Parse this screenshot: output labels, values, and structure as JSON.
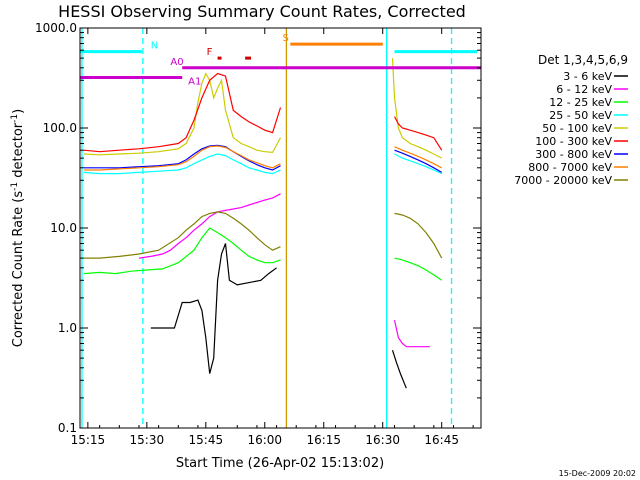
{
  "chart_data": {
    "type": "line",
    "title": "HESSI Observing Summary Count Rates, Corrected",
    "xlabel": "Start Time (26-Apr-02 15:13:02)",
    "ylabel_main": "Corrected Count Rate (s",
    "ylabel_sup1": "-1",
    "ylabel_mid": " detector",
    "ylabel_sup2": "-1",
    "ylabel_end": ")",
    "timestamp": "15-Dec-2009 20:02",
    "y_scale": "log",
    "ylim": [
      0.1,
      1000.0
    ],
    "xlim_minutes": [
      15.0,
      117.0
    ],
    "x_ticks": [
      {
        "label": "15:15",
        "m": 17.0
      },
      {
        "label": "15:30",
        "m": 32.0
      },
      {
        "label": "15:45",
        "m": 47.0
      },
      {
        "label": "16:00",
        "m": 62.0
      },
      {
        "label": "16:15",
        "m": 77.0
      },
      {
        "label": "16:30",
        "m": 92.0
      },
      {
        "label": "16:45",
        "m": 107.0
      }
    ],
    "y_ticks": [
      {
        "label": "0.1",
        "v": 0.1
      },
      {
        "label": "1.0",
        "v": 1.0
      },
      {
        "label": "10.0",
        "v": 10.0
      },
      {
        "label": "100.0",
        "v": 100.0
      },
      {
        "label": "1000.0",
        "v": 1000.0
      }
    ],
    "legend_title": "Det 1,3,4,5,6,9",
    "series": [
      {
        "name": "3 - 6 keV",
        "color": "#000000",
        "x": [
          33,
          35,
          37,
          39,
          41,
          43,
          45,
          46,
          47,
          48,
          49,
          50,
          51,
          52,
          53,
          55,
          57,
          59,
          61,
          63,
          65
        ],
        "y": [
          1.0,
          1.0,
          1.0,
          1.0,
          1.8,
          1.8,
          1.9,
          1.5,
          0.8,
          0.35,
          0.5,
          3.0,
          5.5,
          7.0,
          3.0,
          2.7,
          2.8,
          2.9,
          3.0,
          3.5,
          4.0
        ],
        "x2": [
          94.5,
          95.5,
          96.5,
          97.5,
          98.0
        ],
        "y2": [
          0.6,
          0.45,
          0.35,
          0.28,
          0.25
        ]
      },
      {
        "name": "6 - 12 keV",
        "color": "#ff00ff",
        "x": [
          30,
          33,
          36,
          38,
          40,
          42,
          44,
          46,
          48,
          50,
          52,
          54,
          56,
          58,
          60,
          62,
          64,
          66
        ],
        "y": [
          5.0,
          5.2,
          5.5,
          6.0,
          7.0,
          8.0,
          9.5,
          11.0,
          13.0,
          14.5,
          15.0,
          15.5,
          16.0,
          17.0,
          18.0,
          19.0,
          20.0,
          22.0
        ],
        "x2": [
          95,
          96,
          97,
          98,
          100,
          102,
          104
        ],
        "y2": [
          1.2,
          0.8,
          0.7,
          0.65,
          0.65,
          0.65,
          0.65
        ]
      },
      {
        "name": "12 - 25 keV",
        "color": "#00ff00",
        "x": [
          16,
          20,
          24,
          28,
          32,
          36,
          40,
          44,
          46,
          48,
          50,
          52,
          54,
          56,
          58,
          60,
          62,
          64,
          66
        ],
        "y": [
          3.5,
          3.6,
          3.5,
          3.7,
          3.8,
          3.9,
          4.5,
          6.0,
          8.0,
          10.0,
          9.0,
          8.0,
          7.0,
          6.0,
          5.2,
          4.8,
          4.5,
          4.5,
          4.8
        ],
        "x2": [
          95,
          97,
          99,
          101,
          103,
          105,
          107
        ],
        "y2": [
          5.0,
          4.8,
          4.5,
          4.2,
          3.8,
          3.4,
          3.0
        ]
      },
      {
        "name": "25 - 50 keV",
        "color": "#00ffff",
        "x": [
          16,
          20,
          25,
          30,
          35,
          40,
          42,
          44,
          46,
          48,
          50,
          52,
          54,
          56,
          58,
          60,
          62,
          64,
          66
        ],
        "y": [
          36,
          35,
          35,
          36,
          37,
          38,
          40,
          44,
          48,
          52,
          55,
          53,
          48,
          44,
          40,
          38,
          36,
          35,
          38
        ],
        "x2": [
          95,
          97,
          99,
          101,
          103,
          105,
          107
        ],
        "y2": [
          55,
          50,
          47,
          44,
          41,
          38,
          35
        ]
      },
      {
        "name": "50 - 100 keV",
        "color": "#cccc00",
        "x": [
          16,
          20,
          25,
          30,
          35,
          40,
          42,
          44,
          45,
          46,
          47,
          48,
          49,
          50,
          51,
          52,
          54,
          56,
          58,
          60,
          62,
          64,
          66
        ],
        "y": [
          55,
          54,
          55,
          56,
          58,
          62,
          70,
          100,
          180,
          280,
          350,
          300,
          200,
          250,
          300,
          150,
          80,
          70,
          65,
          60,
          58,
          57,
          80
        ],
        "x2": [
          94.5,
          95,
          96,
          97,
          99,
          101,
          103,
          105,
          107
        ],
        "y2": [
          500,
          200,
          100,
          80,
          70,
          65,
          60,
          55,
          50
        ]
      },
      {
        "name": "100 - 300 keV",
        "color": "#ff0000",
        "x": [
          16,
          20,
          25,
          30,
          35,
          40,
          42,
          44,
          46,
          48,
          50,
          52,
          54,
          56,
          58,
          60,
          62,
          64,
          66
        ],
        "y": [
          60,
          58,
          60,
          62,
          65,
          70,
          80,
          120,
          200,
          300,
          350,
          330,
          150,
          130,
          115,
          105,
          95,
          90,
          160
        ],
        "x2": [
          95,
          96,
          97,
          99,
          101,
          103,
          105,
          107
        ],
        "y2": [
          130,
          110,
          100,
          95,
          90,
          85,
          80,
          60
        ]
      },
      {
        "name": "300 - 800 keV",
        "color": "#0000ff",
        "x": [
          16,
          20,
          25,
          30,
          35,
          40,
          42,
          44,
          46,
          48,
          50,
          52,
          54,
          56,
          58,
          60,
          62,
          64,
          66
        ],
        "y": [
          40,
          40,
          40,
          41,
          42,
          44,
          48,
          55,
          62,
          66,
          67,
          65,
          58,
          52,
          47,
          43,
          40,
          38,
          42
        ],
        "x2": [
          95,
          97,
          99,
          101,
          103,
          105,
          107
        ],
        "y2": [
          60,
          56,
          52,
          48,
          44,
          40,
          36
        ]
      },
      {
        "name": "800 - 7000 keV",
        "color": "#ff8000",
        "x": [
          16,
          20,
          25,
          30,
          35,
          40,
          42,
          44,
          46,
          48,
          50,
          52,
          54,
          56,
          58,
          60,
          62,
          64,
          66
        ],
        "y": [
          38,
          38,
          39,
          40,
          41,
          43,
          46,
          52,
          60,
          65,
          66,
          64,
          58,
          53,
          48,
          45,
          42,
          40,
          44
        ],
        "x2": [
          95,
          97,
          99,
          101,
          103,
          105,
          107
        ],
        "y2": [
          65,
          60,
          56,
          52,
          48,
          44,
          40
        ]
      },
      {
        "name": "7000 - 20000 keV",
        "color": "#808000",
        "x": [
          16,
          20,
          25,
          30,
          35,
          40,
          42,
          44,
          46,
          48,
          50,
          52,
          54,
          56,
          58,
          60,
          62,
          64,
          66
        ],
        "y": [
          5.0,
          5.0,
          5.2,
          5.5,
          6.0,
          8.0,
          9.5,
          11.0,
          13.0,
          14.0,
          14.5,
          14.0,
          12.5,
          11.0,
          9.5,
          8.0,
          6.8,
          6.0,
          6.5
        ],
        "x2": [
          95,
          97,
          99,
          101,
          103,
          105,
          107
        ],
        "y2": [
          14,
          13.5,
          12.5,
          11,
          9,
          7,
          5
        ]
      }
    ],
    "annotations": [
      {
        "label": "N",
        "color": "#00ffff",
        "type": "bar",
        "x0": 15.0,
        "x1": 30.8,
        "y": 580.0,
        "label_x": 33.0
      },
      {
        "label": "N",
        "color": "#00ffff",
        "type": "bar",
        "x0": 95.0,
        "x1": 116.0,
        "y": 580.0
      },
      {
        "label": "A0",
        "color": "#cc00cc",
        "type": "bar",
        "x0": 41.0,
        "x1": 117.0,
        "y": 400.0,
        "label_x": 38.0
      },
      {
        "label": "A1",
        "color": "#cc00cc",
        "type": "bar",
        "x0": 15.0,
        "x1": 41.0,
        "y": 320.0,
        "label_x": 42.5
      },
      {
        "label": "F",
        "color": "#cc0000",
        "type": "bar",
        "x0": 50.0,
        "x1": 51.0,
        "y": 500.0,
        "label_x": 47.2
      },
      {
        "label": "",
        "color": "#cc0000",
        "type": "bar",
        "x0": 57.0,
        "x1": 58.5,
        "y": 500.0
      },
      {
        "label": "S",
        "color": "#ff8000",
        "type": "bar",
        "x0": 68.5,
        "x1": 92.0,
        "y": 690.0,
        "label_x": 66.5
      }
    ],
    "vlines": [
      {
        "x": 15.5,
        "color": "#00ffff",
        "style": "solid"
      },
      {
        "x": 31.0,
        "color": "#00ffff",
        "style": "dashed"
      },
      {
        "x": 67.5,
        "color": "#cc9900",
        "style": "solid"
      },
      {
        "x": 93.0,
        "color": "#00ffff",
        "style": "solid"
      },
      {
        "x": 109.5,
        "color": "#00ffff",
        "style": "dashed"
      }
    ]
  }
}
